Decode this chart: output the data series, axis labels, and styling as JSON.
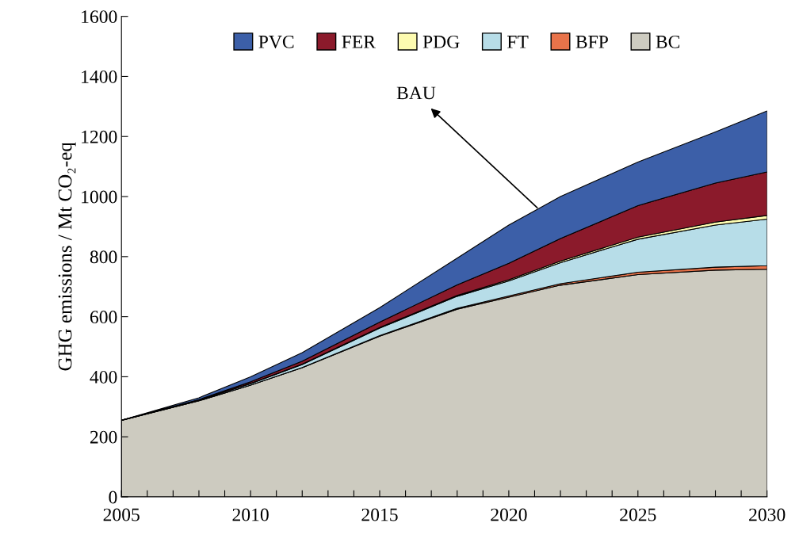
{
  "chart_data": {
    "type": "area",
    "stacked": true,
    "ylabel": "GHG emissions / Mt CO₂-eq",
    "x": [
      2005,
      2008,
      2010,
      2012,
      2015,
      2018,
      2020,
      2022,
      2025,
      2028,
      2030
    ],
    "series": [
      {
        "name": "BC",
        "color": "#cdcbc0",
        "values": [
          255,
          320,
          372,
          430,
          535,
          625,
          665,
          705,
          740,
          755,
          758
        ]
      },
      {
        "name": "BFP",
        "color": "#e8734a",
        "values": [
          0,
          0,
          0,
          1,
          2,
          3,
          4,
          5,
          8,
          10,
          12
        ]
      },
      {
        "name": "FT",
        "color": "#b7dde8",
        "values": [
          0,
          2,
          5,
          10,
          25,
          40,
          50,
          70,
          110,
          140,
          155
        ]
      },
      {
        "name": "PDG",
        "color": "#fdfbb0",
        "values": [
          0,
          0,
          1,
          1,
          2,
          3,
          4,
          5,
          7,
          10,
          12
        ]
      },
      {
        "name": "FER",
        "color": "#8b1a2b",
        "values": [
          0,
          2,
          5,
          10,
          18,
          35,
          55,
          75,
          105,
          130,
          145
        ]
      },
      {
        "name": "PVC",
        "color": "#3c5fa8",
        "values": [
          0,
          6,
          17,
          28,
          48,
          89,
          127,
          140,
          145,
          170,
          203
        ]
      }
    ],
    "xlim": [
      2005,
      2030
    ],
    "xticks": [
      2005,
      {
        "value": 2006,
        "label": null
      },
      {
        "value": 2007,
        "label": null
      },
      {
        "value": 2008,
        "label": null
      },
      {
        "value": 2009,
        "label": null
      },
      2010,
      {
        "value": 2011,
        "label": null
      },
      {
        "value": 2012,
        "label": null
      },
      {
        "value": 2013,
        "label": null
      },
      {
        "value": 2014,
        "label": null
      },
      2015,
      {
        "value": 2016,
        "label": null
      },
      {
        "value": 2017,
        "label": null
      },
      {
        "value": 2018,
        "label": null
      },
      {
        "value": 2019,
        "label": null
      },
      2020,
      {
        "value": 2021,
        "label": null
      },
      {
        "value": 2022,
        "label": null
      },
      {
        "value": 2023,
        "label": null
      },
      {
        "value": 2024,
        "label": null
      },
      2025,
      {
        "value": 2026,
        "label": null
      },
      {
        "value": 2027,
        "label": null
      },
      {
        "value": 2028,
        "label": null
      },
      {
        "value": 2029,
        "label": null
      },
      2030
    ],
    "ylim": [
      0,
      1600
    ],
    "yticks": [
      0,
      200,
      400,
      600,
      800,
      1000,
      1200,
      1400,
      1600
    ],
    "annotations": [
      {
        "text": "BAU",
        "x": 2021.1,
        "y": 963
      }
    ],
    "legend": "top",
    "grid": false
  }
}
